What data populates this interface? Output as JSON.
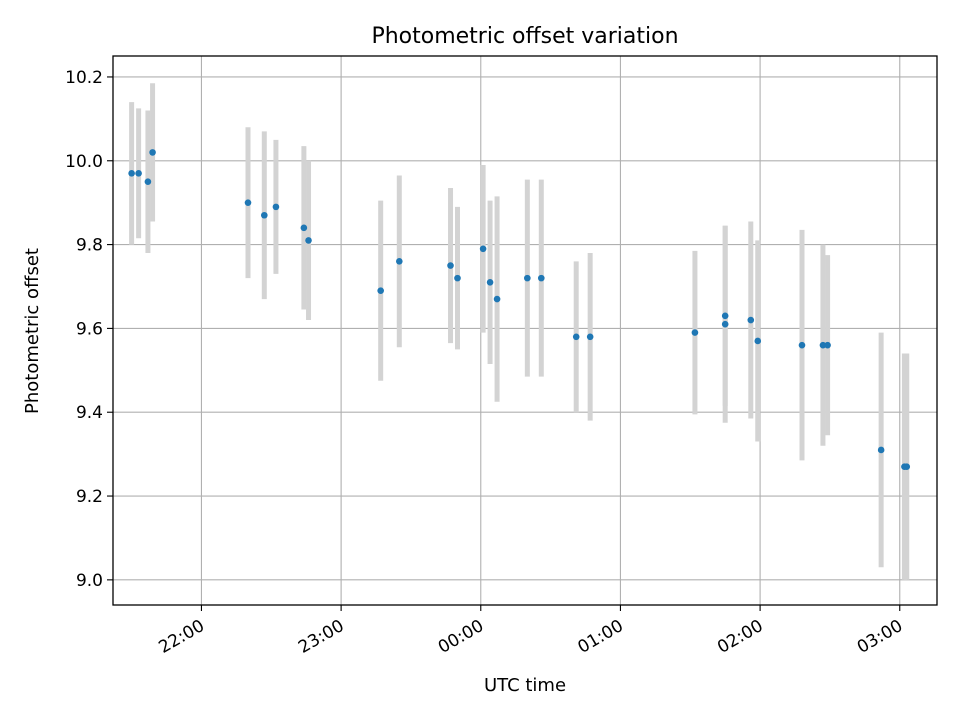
{
  "chart_data": {
    "type": "scatter",
    "title": "Photometric offset variation",
    "xlabel": "UTC time",
    "ylabel": "Photometric offset",
    "x_unit": "UTC",
    "xlim": [
      "21:22",
      "03:16"
    ],
    "ylim": [
      8.94,
      10.25
    ],
    "x_ticks": [
      "22:00",
      "23:00",
      "00:00",
      "01:00",
      "02:00",
      "03:00"
    ],
    "y_ticks": [
      "9.0",
      "9.2",
      "9.4",
      "9.6",
      "9.8",
      "10.0",
      "10.2"
    ],
    "grid": true,
    "colors": {
      "point": "#1f77b4",
      "errorbar": "#d3d3d3",
      "grid": "#b0b0b0"
    },
    "series": [
      {
        "points": [
          {
            "time": "21:30",
            "y": 9.97,
            "err": 0.17
          },
          {
            "time": "21:33",
            "y": 9.97,
            "err": 0.155
          },
          {
            "time": "21:37",
            "y": 9.95,
            "err": 0.17
          },
          {
            "time": "21:39",
            "y": 10.02,
            "err": 0.165
          },
          {
            "time": "22:20",
            "y": 9.9,
            "err": 0.18
          },
          {
            "time": "22:27",
            "y": 9.87,
            "err": 0.2
          },
          {
            "time": "22:32",
            "y": 9.89,
            "err": 0.16
          },
          {
            "time": "22:44",
            "y": 9.84,
            "err": 0.195
          },
          {
            "time": "22:46",
            "y": 9.81,
            "err": 0.19
          },
          {
            "time": "23:17",
            "y": 9.69,
            "err": 0.215
          },
          {
            "time": "23:25",
            "y": 9.76,
            "err": 0.205
          },
          {
            "time": "23:47",
            "y": 9.75,
            "err": 0.185
          },
          {
            "time": "23:50",
            "y": 9.72,
            "err": 0.17
          },
          {
            "time": "00:01",
            "y": 9.79,
            "err": 0.2
          },
          {
            "time": "00:04",
            "y": 9.71,
            "err": 0.195
          },
          {
            "time": "00:07",
            "y": 9.67,
            "err": 0.245
          },
          {
            "time": "00:20",
            "y": 9.72,
            "err": 0.235
          },
          {
            "time": "00:26",
            "y": 9.72,
            "err": 0.235
          },
          {
            "time": "00:41",
            "y": 9.58,
            "err": 0.18
          },
          {
            "time": "00:47",
            "y": 9.58,
            "err": 0.2
          },
          {
            "time": "01:32",
            "y": 9.59,
            "err": 0.195
          },
          {
            "time": "01:45",
            "y": 9.63,
            "err": 0.215
          },
          {
            "time": "01:45",
            "y": 9.61,
            "err": 0.235
          },
          {
            "time": "01:56",
            "y": 9.62,
            "err": 0.235
          },
          {
            "time": "01:59",
            "y": 9.57,
            "err": 0.24
          },
          {
            "time": "02:18",
            "y": 9.56,
            "err": 0.275
          },
          {
            "time": "02:27",
            "y": 9.56,
            "err": 0.24
          },
          {
            "time": "02:29",
            "y": 9.56,
            "err": 0.215
          },
          {
            "time": "02:52",
            "y": 9.31,
            "err": 0.28
          },
          {
            "time": "03:02",
            "y": 9.27,
            "err": 0.27
          },
          {
            "time": "03:03",
            "y": 9.27,
            "err": 0.27
          }
        ]
      }
    ]
  }
}
